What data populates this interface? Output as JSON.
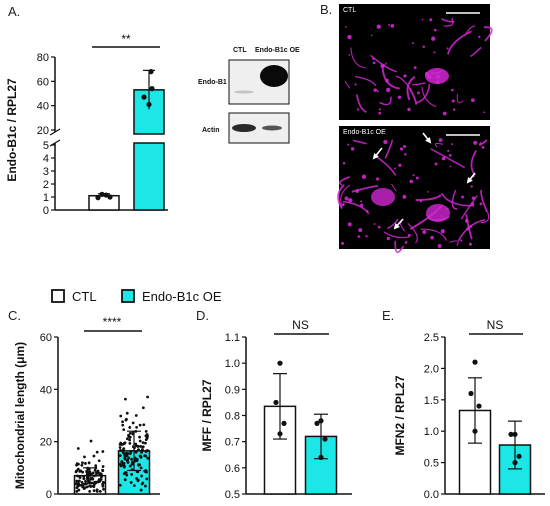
{
  "panels": {
    "a": "A.",
    "b": "B.",
    "c": "C.",
    "d": "D.",
    "e": "E."
  },
  "legend": {
    "ctl": "CTL",
    "oe": "Endo-B1c OE"
  },
  "colors": {
    "oe_fill": "#1de6e6",
    "ctl_fill": "#ffffff",
    "magenta": "#d427d4",
    "blot_bg": "#ececec"
  },
  "blot": {
    "col_ctl": "CTL",
    "col_oe": "Endo-B1c OE",
    "row1": "Endo-B1",
    "row2": "Actin"
  },
  "micrographs": {
    "top_label": "CTL",
    "bottom_label": "Endo-B1c OE"
  },
  "chart_data": [
    {
      "id": "A",
      "type": "bar",
      "categories": [
        "CTL",
        "Endo-B1c OE"
      ],
      "values": [
        1.1,
        53
      ],
      "error": [
        0.15,
        16
      ],
      "points": [
        [
          0.95,
          1.2,
          1.15,
          1.0
        ],
        [
          41,
          47,
          54,
          68
        ]
      ],
      "ylabel": "Endo-B1c / RPL27",
      "broken_axis": true,
      "lower_ticks": [
        "0",
        "1",
        "2",
        "3",
        "4",
        "5"
      ],
      "upper_ticks": [
        "20",
        "40",
        "60",
        "80"
      ],
      "significance": "**"
    },
    {
      "id": "C",
      "type": "bar",
      "categories": [
        "CTL",
        "Endo-B1c OE"
      ],
      "values": [
        7,
        16.5
      ],
      "error": [
        3,
        7.5
      ],
      "ylabel": "Mitochondrial length (μm)",
      "ylim": [
        0,
        60
      ],
      "yticks": [
        "0",
        "20",
        "40",
        "60"
      ],
      "significance": "****"
    },
    {
      "id": "D",
      "type": "bar",
      "categories": [
        "CTL",
        "Endo-B1c OE"
      ],
      "values": [
        0.835,
        0.72
      ],
      "error": [
        0.125,
        0.085
      ],
      "points": [
        [
          1.0,
          0.85,
          0.77,
          0.73
        ],
        [
          0.78,
          0.77,
          0.71,
          0.64
        ]
      ],
      "ylabel": "MFF / RPL27",
      "ylim": [
        0.5,
        1.1
      ],
      "yticks": [
        "0.5",
        "0.6",
        "0.7",
        "0.8",
        "0.9",
        "1.0",
        "1.1"
      ],
      "significance": "NS"
    },
    {
      "id": "E",
      "type": "bar",
      "categories": [
        "CTL",
        "Endo-B1c OE"
      ],
      "values": [
        1.33,
        0.78
      ],
      "error": [
        0.52,
        0.38
      ],
      "points": [
        [
          2.1,
          1.6,
          1.4,
          1.0
        ],
        [
          0.95,
          0.95,
          0.6,
          0.5
        ]
      ],
      "ylabel": "MFN2 / RPL27",
      "ylim": [
        0,
        2.5
      ],
      "yticks": [
        "0.0",
        "0.5",
        "1.0",
        "1.5",
        "2.0",
        "2.5"
      ],
      "significance": "NS"
    }
  ]
}
